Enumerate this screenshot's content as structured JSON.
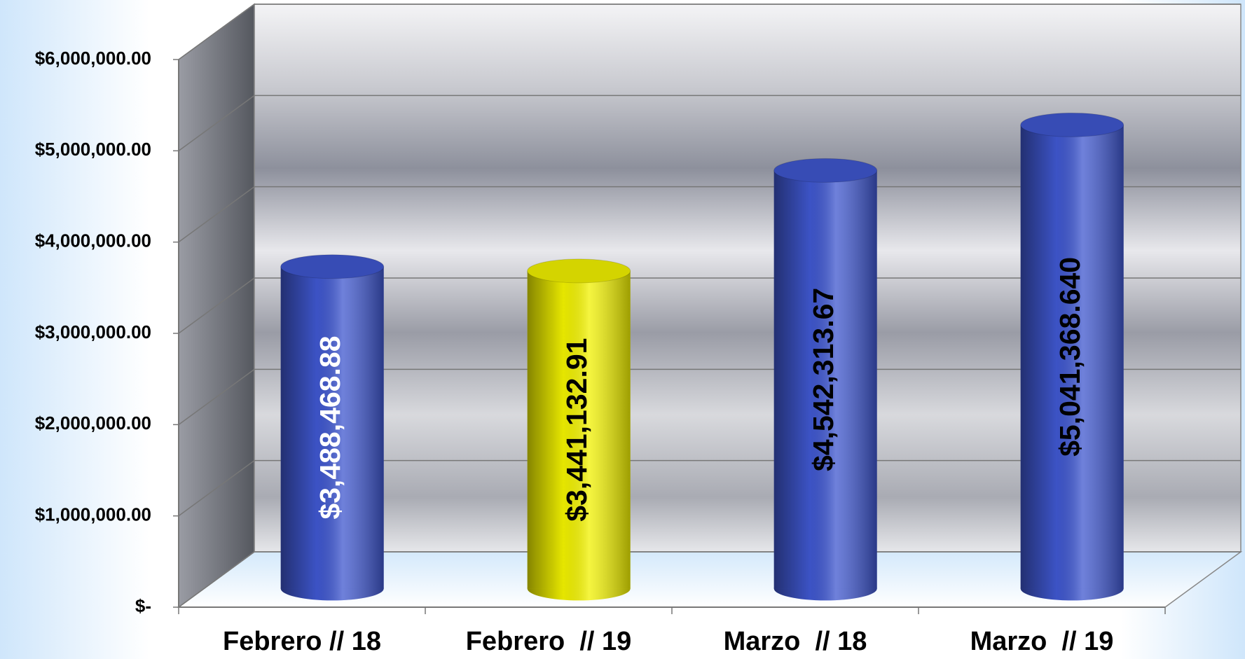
{
  "chart_data": {
    "type": "cylinder",
    "categories": [
      "Febrero // 18",
      "Febrero  // 19",
      "Marzo  // 18",
      "Marzo  // 19"
    ],
    "values": [
      3488468.88,
      3441132.91,
      4542313.67,
      5041368.64
    ],
    "value_labels": [
      "$3,488,468.88",
      "$3,441,132.91",
      "$4,542,313.67",
      "$5,041,368.640"
    ],
    "colors": [
      "#3f57cf",
      "#f2f200",
      "#3f57cf",
      "#3f57cf"
    ],
    "label_colors": [
      "#ffffff",
      "#000000",
      "#000000",
      "#000000"
    ],
    "ylim": [
      0,
      6000000
    ],
    "yticks": [
      {
        "value": 0,
        "label": "$-"
      },
      {
        "value": 1000000,
        "label": "$1,000,000.00"
      },
      {
        "value": 2000000,
        "label": "$2,000,000.00"
      },
      {
        "value": 3000000,
        "label": "$3,000,000.00"
      },
      {
        "value": 4000000,
        "label": "$4,000,000.00"
      },
      {
        "value": 5000000,
        "label": "$5,000,000.00"
      },
      {
        "value": 6000000,
        "label": "$6,000,000.00"
      }
    ],
    "grid": true
  }
}
